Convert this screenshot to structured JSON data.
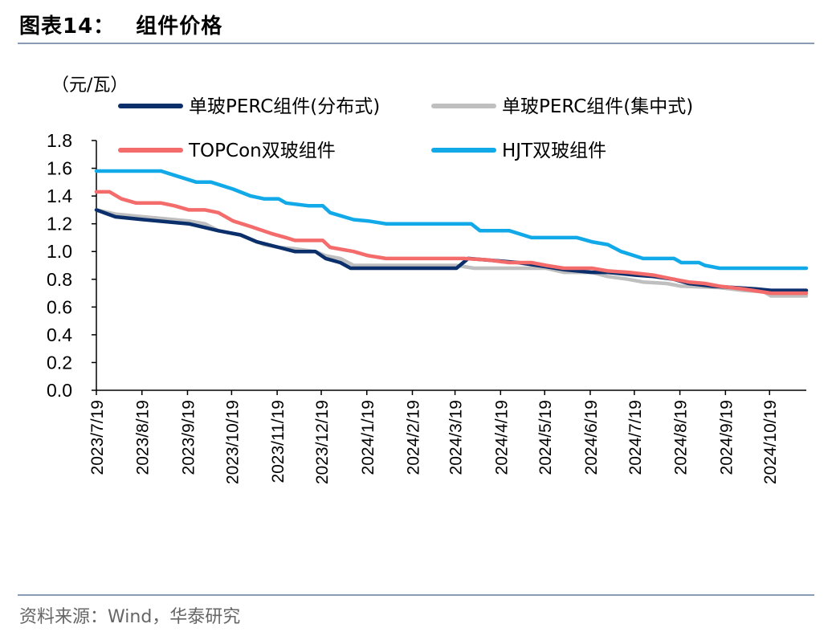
{
  "header": {
    "figure_label": "图表14：",
    "figure_title": "组件价格"
  },
  "footer": {
    "source": "资料来源：Wind，华泰研究"
  },
  "chart_data": {
    "type": "line",
    "ylabel": "（元/瓦）",
    "ylim": [
      0.0,
      1.8
    ],
    "yticks": [
      "0.0",
      "0.2",
      "0.4",
      "0.6",
      "0.8",
      "1.0",
      "1.2",
      "1.4",
      "1.6",
      "1.8"
    ],
    "ytick_values": [
      0.0,
      0.2,
      0.4,
      0.6,
      0.8,
      1.0,
      1.2,
      1.4,
      1.6,
      1.8
    ],
    "x_start": "2023/7/19",
    "x_end": "2024/11/13",
    "xticks": [
      "2023/7/19",
      "2023/8/19",
      "2023/9/19",
      "2023/10/19",
      "2023/11/19",
      "2023/12/19",
      "2024/1/19",
      "2024/2/19",
      "2024/3/19",
      "2024/4/19",
      "2024/5/19",
      "2024/6/19",
      "2024/7/19",
      "2024/8/19",
      "2024/9/19",
      "2024/10/19"
    ],
    "grid": false,
    "legend_position": "top",
    "series": [
      {
        "name": "单玻PERC组件(分布式)",
        "color": "#0b2f6b",
        "points": [
          [
            "2023/7/19",
            1.3
          ],
          [
            "2023/8/1",
            1.25
          ],
          [
            "2023/8/20",
            1.23
          ],
          [
            "2023/9/20",
            1.2
          ],
          [
            "2023/10/10",
            1.15
          ],
          [
            "2023/10/25",
            1.12
          ],
          [
            "2023/11/5",
            1.07
          ],
          [
            "2023/11/20",
            1.03
          ],
          [
            "2023/12/1",
            1.0
          ],
          [
            "2023/12/15",
            1.0
          ],
          [
            "2023/12/22",
            0.95
          ],
          [
            "2024/1/1",
            0.92
          ],
          [
            "2024/1/8",
            0.88
          ],
          [
            "2024/2/1",
            0.88
          ],
          [
            "2024/3/1",
            0.88
          ],
          [
            "2024/3/20",
            0.88
          ],
          [
            "2024/3/28",
            0.95
          ],
          [
            "2024/4/20",
            0.93
          ],
          [
            "2024/5/1",
            0.92
          ],
          [
            "2024/5/20",
            0.89
          ],
          [
            "2024/6/1",
            0.87
          ],
          [
            "2024/6/20",
            0.85
          ],
          [
            "2024/7/1",
            0.85
          ],
          [
            "2024/7/20",
            0.83
          ],
          [
            "2024/8/1",
            0.82
          ],
          [
            "2024/8/15",
            0.8
          ],
          [
            "2024/8/25",
            0.77
          ],
          [
            "2024/9/10",
            0.75
          ],
          [
            "2024/9/25",
            0.74
          ],
          [
            "2024/10/10",
            0.73
          ],
          [
            "2024/10/20",
            0.72
          ],
          [
            "2024/11/13",
            0.72
          ]
        ]
      },
      {
        "name": "单玻PERC组件(集中式)",
        "color": "#bfbfbf",
        "points": [
          [
            "2023/7/19",
            1.3
          ],
          [
            "2023/8/1",
            1.27
          ],
          [
            "2023/8/20",
            1.25
          ],
          [
            "2023/9/10",
            1.23
          ],
          [
            "2023/9/20",
            1.22
          ],
          [
            "2023/10/1",
            1.2
          ],
          [
            "2023/10/10",
            1.15
          ],
          [
            "2023/10/25",
            1.12
          ],
          [
            "2023/11/10",
            1.05
          ],
          [
            "2023/11/20",
            1.03
          ],
          [
            "2023/12/1",
            1.02
          ],
          [
            "2023/12/15",
            1.0
          ],
          [
            "2023/12/22",
            0.97
          ],
          [
            "2024/1/1",
            0.95
          ],
          [
            "2024/1/10",
            0.9
          ],
          [
            "2024/2/1",
            0.9
          ],
          [
            "2024/3/1",
            0.9
          ],
          [
            "2024/3/20",
            0.9
          ],
          [
            "2024/4/1",
            0.88
          ],
          [
            "2024/5/1",
            0.88
          ],
          [
            "2024/5/20",
            0.88
          ],
          [
            "2024/6/1",
            0.85
          ],
          [
            "2024/6/20",
            0.85
          ],
          [
            "2024/7/1",
            0.82
          ],
          [
            "2024/7/15",
            0.8
          ],
          [
            "2024/7/25",
            0.78
          ],
          [
            "2024/8/10",
            0.77
          ],
          [
            "2024/8/20",
            0.75
          ],
          [
            "2024/9/15",
            0.74
          ],
          [
            "2024/10/1",
            0.72
          ],
          [
            "2024/10/15",
            0.71
          ],
          [
            "2024/10/20",
            0.68
          ],
          [
            "2024/11/13",
            0.68
          ]
        ]
      },
      {
        "name": "TOPCon双玻组件",
        "color": "#f46b6b",
        "points": [
          [
            "2023/7/19",
            1.43
          ],
          [
            "2023/7/28",
            1.43
          ],
          [
            "2023/8/5",
            1.38
          ],
          [
            "2023/8/15",
            1.35
          ],
          [
            "2023/9/1",
            1.35
          ],
          [
            "2023/9/10",
            1.33
          ],
          [
            "2023/9/20",
            1.3
          ],
          [
            "2023/10/1",
            1.3
          ],
          [
            "2023/10/10",
            1.28
          ],
          [
            "2023/10/20",
            1.22
          ],
          [
            "2023/11/1",
            1.18
          ],
          [
            "2023/11/15",
            1.13
          ],
          [
            "2023/11/25",
            1.1
          ],
          [
            "2023/12/1",
            1.08
          ],
          [
            "2023/12/20",
            1.08
          ],
          [
            "2023/12/25",
            1.03
          ],
          [
            "2024/1/10",
            1.0
          ],
          [
            "2024/1/20",
            0.97
          ],
          [
            "2024/2/1",
            0.95
          ],
          [
            "2024/3/1",
            0.95
          ],
          [
            "2024/3/25",
            0.95
          ],
          [
            "2024/4/10",
            0.94
          ],
          [
            "2024/4/25",
            0.92
          ],
          [
            "2024/5/10",
            0.92
          ],
          [
            "2024/5/20",
            0.9
          ],
          [
            "2024/6/1",
            0.88
          ],
          [
            "2024/6/20",
            0.88
          ],
          [
            "2024/7/1",
            0.86
          ],
          [
            "2024/7/15",
            0.85
          ],
          [
            "2024/8/1",
            0.83
          ],
          [
            "2024/8/15",
            0.8
          ],
          [
            "2024/8/25",
            0.78
          ],
          [
            "2024/9/5",
            0.77
          ],
          [
            "2024/9/15",
            0.75
          ],
          [
            "2024/10/1",
            0.73
          ],
          [
            "2024/10/20",
            0.7
          ],
          [
            "2024/11/13",
            0.7
          ]
        ]
      },
      {
        "name": "HJT双玻组件",
        "color": "#12a9e8",
        "points": [
          [
            "2023/7/19",
            1.58
          ],
          [
            "2023/9/1",
            1.58
          ],
          [
            "2023/9/10",
            1.55
          ],
          [
            "2023/9/25",
            1.5
          ],
          [
            "2023/10/5",
            1.5
          ],
          [
            "2023/10/20",
            1.45
          ],
          [
            "2023/11/1",
            1.4
          ],
          [
            "2023/11/10",
            1.38
          ],
          [
            "2023/11/20",
            1.38
          ],
          [
            "2023/11/25",
            1.35
          ],
          [
            "2023/12/10",
            1.33
          ],
          [
            "2023/12/20",
            1.33
          ],
          [
            "2023/12/25",
            1.28
          ],
          [
            "2024/1/10",
            1.23
          ],
          [
            "2024/1/20",
            1.22
          ],
          [
            "2024/2/1",
            1.2
          ],
          [
            "2024/3/1",
            1.2
          ],
          [
            "2024/3/30",
            1.2
          ],
          [
            "2024/4/5",
            1.15
          ],
          [
            "2024/4/25",
            1.15
          ],
          [
            "2024/5/10",
            1.1
          ],
          [
            "2024/6/10",
            1.1
          ],
          [
            "2024/6/20",
            1.07
          ],
          [
            "2024/7/1",
            1.05
          ],
          [
            "2024/7/10",
            1.0
          ],
          [
            "2024/7/25",
            0.95
          ],
          [
            "2024/8/15",
            0.95
          ],
          [
            "2024/8/20",
            0.92
          ],
          [
            "2024/9/1",
            0.92
          ],
          [
            "2024/9/5",
            0.9
          ],
          [
            "2024/9/15",
            0.88
          ],
          [
            "2024/11/13",
            0.88
          ]
        ]
      }
    ]
  }
}
